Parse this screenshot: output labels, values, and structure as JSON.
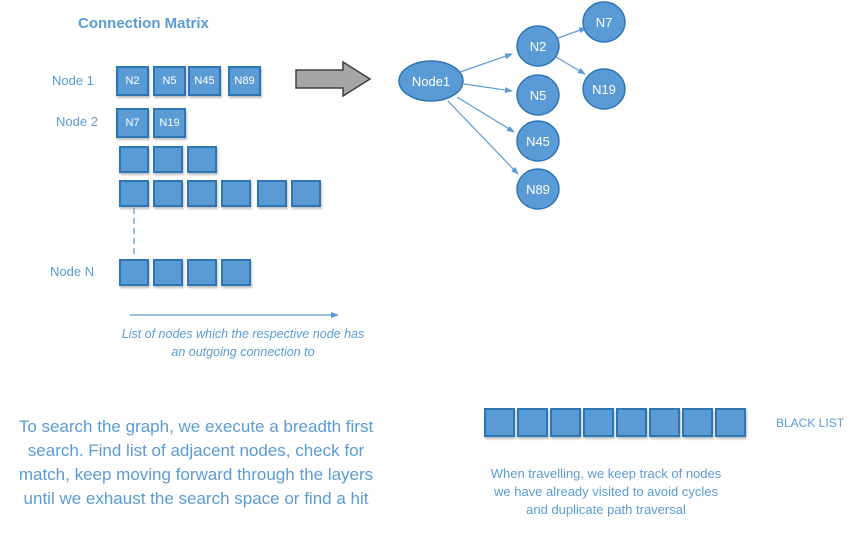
{
  "matrix": {
    "title": "Connection Matrix",
    "row1_label": "Node 1",
    "row1_cells": [
      "N2",
      "N5",
      "N45",
      "N89"
    ],
    "row2_label": "Node 2",
    "row2_cells": [
      "N7",
      "N19"
    ],
    "rowN_label": "Node N",
    "caption": "List of nodes which the respective node has an outgoing connection to"
  },
  "graph": {
    "nodes": [
      "Node1",
      "N2",
      "N5",
      "N45",
      "N89",
      "N7",
      "N19"
    ]
  },
  "search_text": "To search the graph, we execute a breadth first search. Find list of adjacent nodes, check for match, keep moving forward through the layers until we exhaust the search space or find a hit",
  "blacklist": {
    "label": "BLACK LIST",
    "note": "When travelling, we keep track of nodes we have already visited to avoid cycles and duplicate path traversal"
  },
  "colors": {
    "accent": "#5b9bd5",
    "border": "#2e75b6",
    "arrow_gray": "#a6a6a6"
  }
}
